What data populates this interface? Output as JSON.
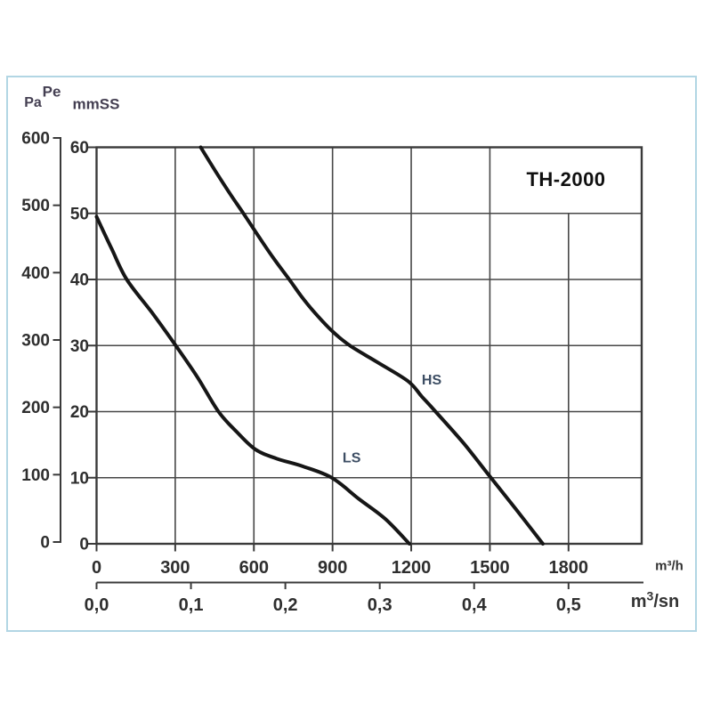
{
  "window": {
    "background": "#ffffff",
    "frame_border_color": "#b2d6e4"
  },
  "pressure_unit_labels": {
    "pa": "Pa",
    "pe": "Pe",
    "mmss": "mmSS"
  },
  "chart_data": {
    "type": "line",
    "title": "TH-2000",
    "series": [
      {
        "name": "HS",
        "points": [
          [
            397,
            60
          ],
          [
            455,
            56.3
          ],
          [
            510,
            52.9
          ],
          [
            560,
            50
          ],
          [
            620,
            46.4
          ],
          [
            675,
            43.2
          ],
          [
            735,
            40
          ],
          [
            780,
            37.5
          ],
          [
            827,
            35.2
          ],
          [
            898,
            32.2
          ],
          [
            966,
            30
          ],
          [
            1070,
            27.5
          ],
          [
            1188,
            24.6
          ],
          [
            1240,
            22.3
          ],
          [
            1293,
            20
          ],
          [
            1400,
            15.2
          ],
          [
            1500,
            10.2
          ],
          [
            1600,
            5.2
          ],
          [
            1702,
            0
          ]
        ]
      },
      {
        "name": "LS",
        "points": [
          [
            0,
            49.5
          ],
          [
            58,
            44.6
          ],
          [
            115,
            40
          ],
          [
            211,
            35
          ],
          [
            302,
            30
          ],
          [
            385,
            25.2
          ],
          [
            465,
            20
          ],
          [
            533,
            17
          ],
          [
            605,
            14.3
          ],
          [
            686,
            12.9
          ],
          [
            788,
            11.7
          ],
          [
            897,
            10
          ],
          [
            1000,
            6.8
          ],
          [
            1100,
            3.8
          ],
          [
            1193,
            0
          ]
        ]
      }
    ],
    "annotations": [
      {
        "text": "HS",
        "x": 1278,
        "y": 24.9
      },
      {
        "text": "LS",
        "x": 973,
        "y": 13.1
      }
    ],
    "x_axis_primary": {
      "unit": "m³/h",
      "tick_values": [
        0,
        300,
        600,
        900,
        1200,
        1500,
        1800
      ],
      "tick_labels": [
        "0",
        "300",
        "600",
        "900",
        "1200",
        "1500",
        "1800"
      ],
      "range": [
        0,
        2079
      ]
    },
    "x_axis_secondary": {
      "unit_base": "m",
      "unit_sup": "3",
      "unit_rest": "/sn",
      "tick_values": [
        0,
        0.1,
        0.2,
        0.3,
        0.4,
        0.5
      ],
      "tick_labels": [
        "0,0",
        "0,1",
        "0,2",
        "0,3",
        "0,4",
        "0,5"
      ],
      "primary_per_unit": 3600
    },
    "y_axis_mmss": {
      "unit": "mmSS",
      "tick_values": [
        0,
        10,
        20,
        30,
        40,
        50,
        60
      ],
      "tick_labels": [
        "0",
        "10",
        "20",
        "30",
        "40",
        "50",
        "60"
      ],
      "range": [
        0,
        60
      ]
    },
    "y_axis_pa": {
      "unit": "Pa",
      "tick_values": [
        0,
        100,
        200,
        300,
        400,
        500,
        600
      ],
      "tick_labels": [
        "0",
        "100",
        "200",
        "300",
        "400",
        "500",
        "600"
      ],
      "range": [
        0,
        600
      ]
    },
    "grid": true,
    "title_cell": {
      "between_x_values": [
        1500,
        2079
      ],
      "between_y_values": [
        50,
        60
      ]
    },
    "colors": {
      "curve": "#161616",
      "grid": "#474747",
      "plot_border": "#3a3a3a",
      "tick_text": "#2e2e2e",
      "series_label": "#3c4d63",
      "title_text": "#101010",
      "unit_text": "#333333"
    }
  }
}
